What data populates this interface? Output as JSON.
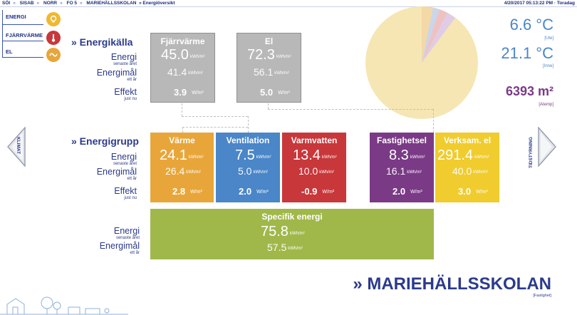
{
  "breadcrumb": [
    "SÖI",
    "SISAB",
    "NORR",
    "FO 5",
    "MARIEHÄLLSSKOLAN"
  ],
  "breadcrumb_sep": "»",
  "view_title": "» Energiöversikt",
  "datetime": "4/20/2017 05:13:22 PM · Toradag",
  "menu": {
    "items": [
      {
        "label": "ENERGI",
        "icon": "lightbulb-icon",
        "color": "#f0b82e"
      },
      {
        "label": "FJÄRRVÄRME",
        "icon": "thermometer-icon",
        "color": "#c8373a"
      },
      {
        "label": "EL",
        "icon": "electricity-icon",
        "color": "#e8a63a"
      }
    ]
  },
  "labels": {
    "energikalla": "» Energikälla",
    "energigrupp": "» Energigrupp",
    "energi": "Energi",
    "energi_sub": "senaste året",
    "energimal": "Energimål",
    "energimal_sub": "ett år",
    "effekt": "Effekt",
    "effekt_sub": "just nu"
  },
  "units": {
    "energy": "kWh/m²",
    "power": "W/m²"
  },
  "sources": [
    {
      "title": "Fjärrvärme",
      "energi": "45.0",
      "mal": "41.4",
      "effekt": "3.9",
      "color": "#b8b8b8"
    },
    {
      "title": "El",
      "energi": "72.3",
      "mal": "56.1",
      "effekt": "5.0",
      "color": "#b8b8b8"
    }
  ],
  "groups": [
    {
      "title": "Värme",
      "energi": "24.1",
      "mal": "26.4",
      "effekt": "2.8",
      "color": "#e8a63a"
    },
    {
      "title": "Ventilation",
      "energi": "7.5",
      "mal": "5.0",
      "effekt": "2.0",
      "color": "#4a86c8"
    },
    {
      "title": "Varmvatten",
      "energi": "13.4",
      "mal": "10.0",
      "effekt": "-0.9",
      "color": "#c8373a"
    },
    {
      "title": "Fastighetsel",
      "energi": "8.3",
      "mal": "16.1",
      "effekt": "2.0",
      "color": "#7a3a86"
    },
    {
      "title": "Verksam. el",
      "energi": "291.4",
      "mal": "40.0",
      "effekt": "3.0",
      "color": "#f0cc2e"
    }
  ],
  "specific": {
    "title": "Specifik energi",
    "energi": "75.8",
    "mal": "57.5",
    "color": "#a0b84a"
  },
  "nav": {
    "left": "KLIMAT",
    "right": "TIDSTYRNING"
  },
  "outdoor_temp": {
    "value": "6.6 °C",
    "label": "[Ute]"
  },
  "indoor_temp": {
    "value": "21.1 °C",
    "label": "[Inne]"
  },
  "area": {
    "value": "6393 m²",
    "label": "[Atemp]"
  },
  "building": {
    "name": "» MARIEHÄLLSSKOLAN",
    "label": "[Fastighet]"
  }
}
